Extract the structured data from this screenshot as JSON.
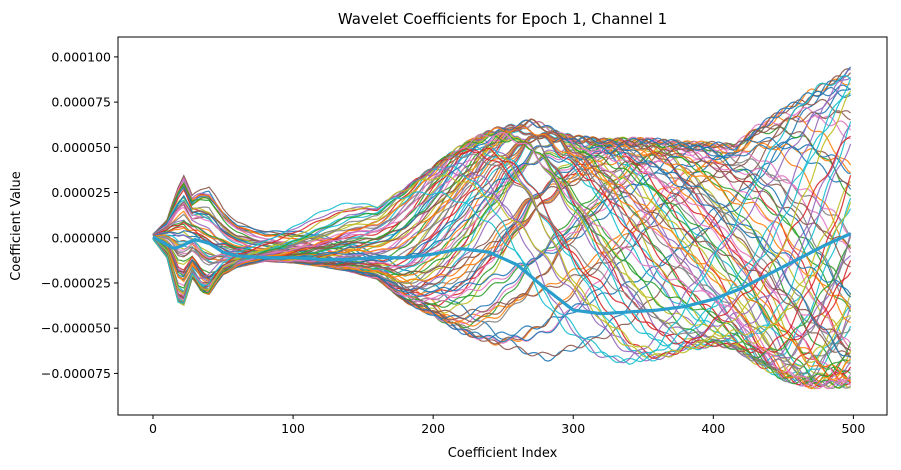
{
  "chart_data": {
    "type": "line",
    "title": "Wavelet Coefficients for Epoch 1, Channel 1",
    "xlabel": "Coefficient Index",
    "ylabel": "Coefficient Value",
    "xlim": [
      -25,
      524
    ],
    "ylim": [
      -9.8e-05,
      0.000111
    ],
    "xticks": [
      0,
      100,
      200,
      300,
      400,
      500
    ],
    "xtick_labels": [
      "0",
      "100",
      "200",
      "300",
      "400",
      "500"
    ],
    "yticks": [
      -7.5e-05,
      -5e-05,
      -2.5e-05,
      0,
      2.5e-05,
      5e-05,
      7.5e-05,
      0.0001
    ],
    "ytick_labels": [
      "−0.000075",
      "−0.000050",
      "−0.000025",
      "0.000000",
      "0.000025",
      "0.000050",
      "0.000075",
      "0.000100"
    ],
    "grid": false,
    "legend": "none",
    "series_count": 90,
    "n_points": 500,
    "palette": [
      "#1f77b4",
      "#ff7f0e",
      "#2ca02c",
      "#d62728",
      "#9467bd",
      "#8c564b",
      "#e377c2",
      "#7f7f7f",
      "#bcbd22",
      "#17becf"
    ],
    "envelope": {
      "x": [
        0,
        10,
        18,
        22,
        28,
        35,
        40,
        50,
        60,
        80,
        100,
        120,
        140,
        160,
        180,
        200,
        220,
        240,
        260,
        270,
        280,
        300,
        320,
        340,
        360,
        380,
        400,
        415,
        430,
        450,
        470,
        500
      ],
      "upper": [
        2e-06,
        1.2e-05,
        3.5e-05,
        4.2e-05,
        2.8e-05,
        3.5e-05,
        3.7e-05,
        2.4e-05,
        1.6e-05,
        1.2e-05,
        1.7e-05,
        2.2e-05,
        2.4e-05,
        2.1e-05,
        3.2e-05,
        4.5e-05,
        5.7e-05,
        6.6e-05,
        7.1e-05,
        7.3e-05,
        7.1e-05,
        6.5e-05,
        6.3e-05,
        6.3e-05,
        6.2e-05,
        6e-05,
        5.9e-05,
        5.7e-05,
        6.7e-05,
        7.7e-05,
        8.7e-05,
        0.0001
      ],
      "lower": [
        -1e-06,
        -1.2e-05,
        -4e-05,
        -4.2e-05,
        -2.5e-05,
        -3.4e-05,
        -3.5e-05,
        -2.2e-05,
        -1.7e-05,
        -1.3e-05,
        -1.4e-05,
        -1.6e-05,
        -1.9e-05,
        -2.4e-05,
        -3.8e-05,
        -4.7e-05,
        -5.7e-05,
        -6.3e-05,
        -6.7e-05,
        -6.9e-05,
        -7.1e-05,
        -6.8e-05,
        -6.9e-05,
        -7.1e-05,
        -6.9e-05,
        -6.4e-05,
        -6.1e-05,
        -6.3e-05,
        -7.2e-05,
        -8.2e-05,
        -8.7e-05,
        -8.7e-05
      ]
    },
    "highlight_series": {
      "name": "",
      "color": "#2a9fce",
      "x": [
        0,
        8,
        15,
        22,
        30,
        40,
        50,
        60,
        80,
        100,
        120,
        140,
        160,
        180,
        200,
        220,
        240,
        260,
        280,
        300,
        320,
        340,
        360,
        380,
        400,
        420,
        440,
        460,
        480,
        500
      ],
      "y": [
        5e-07,
        -3e-06,
        -6e-06,
        -4e-06,
        -1e-06,
        -3e-06,
        -8e-06,
        -1e-05,
        -1.1e-05,
        -1.1e-05,
        -1.2e-05,
        -1.2e-05,
        -1.1e-05,
        -1.1e-05,
        -9e-06,
        -6e-06,
        -8e-06,
        -1.5e-05,
        -2.8e-05,
        -4e-05,
        -4.2e-05,
        -4.1e-05,
        -4e-05,
        -3.8e-05,
        -3.4e-05,
        -2.8e-05,
        -2e-05,
        -1.2e-05,
        -4e-06,
        3e-06
      ]
    }
  }
}
